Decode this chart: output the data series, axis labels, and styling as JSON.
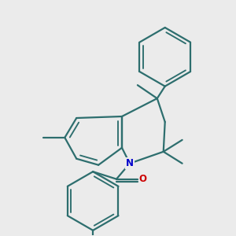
{
  "background_color": "#ebebeb",
  "bond_color": "#2d6e6e",
  "nitrogen_color": "#0000cc",
  "oxygen_color": "#cc0000",
  "line_width": 1.6,
  "fig_size": [
    3.0,
    3.0
  ],
  "dpi": 100
}
